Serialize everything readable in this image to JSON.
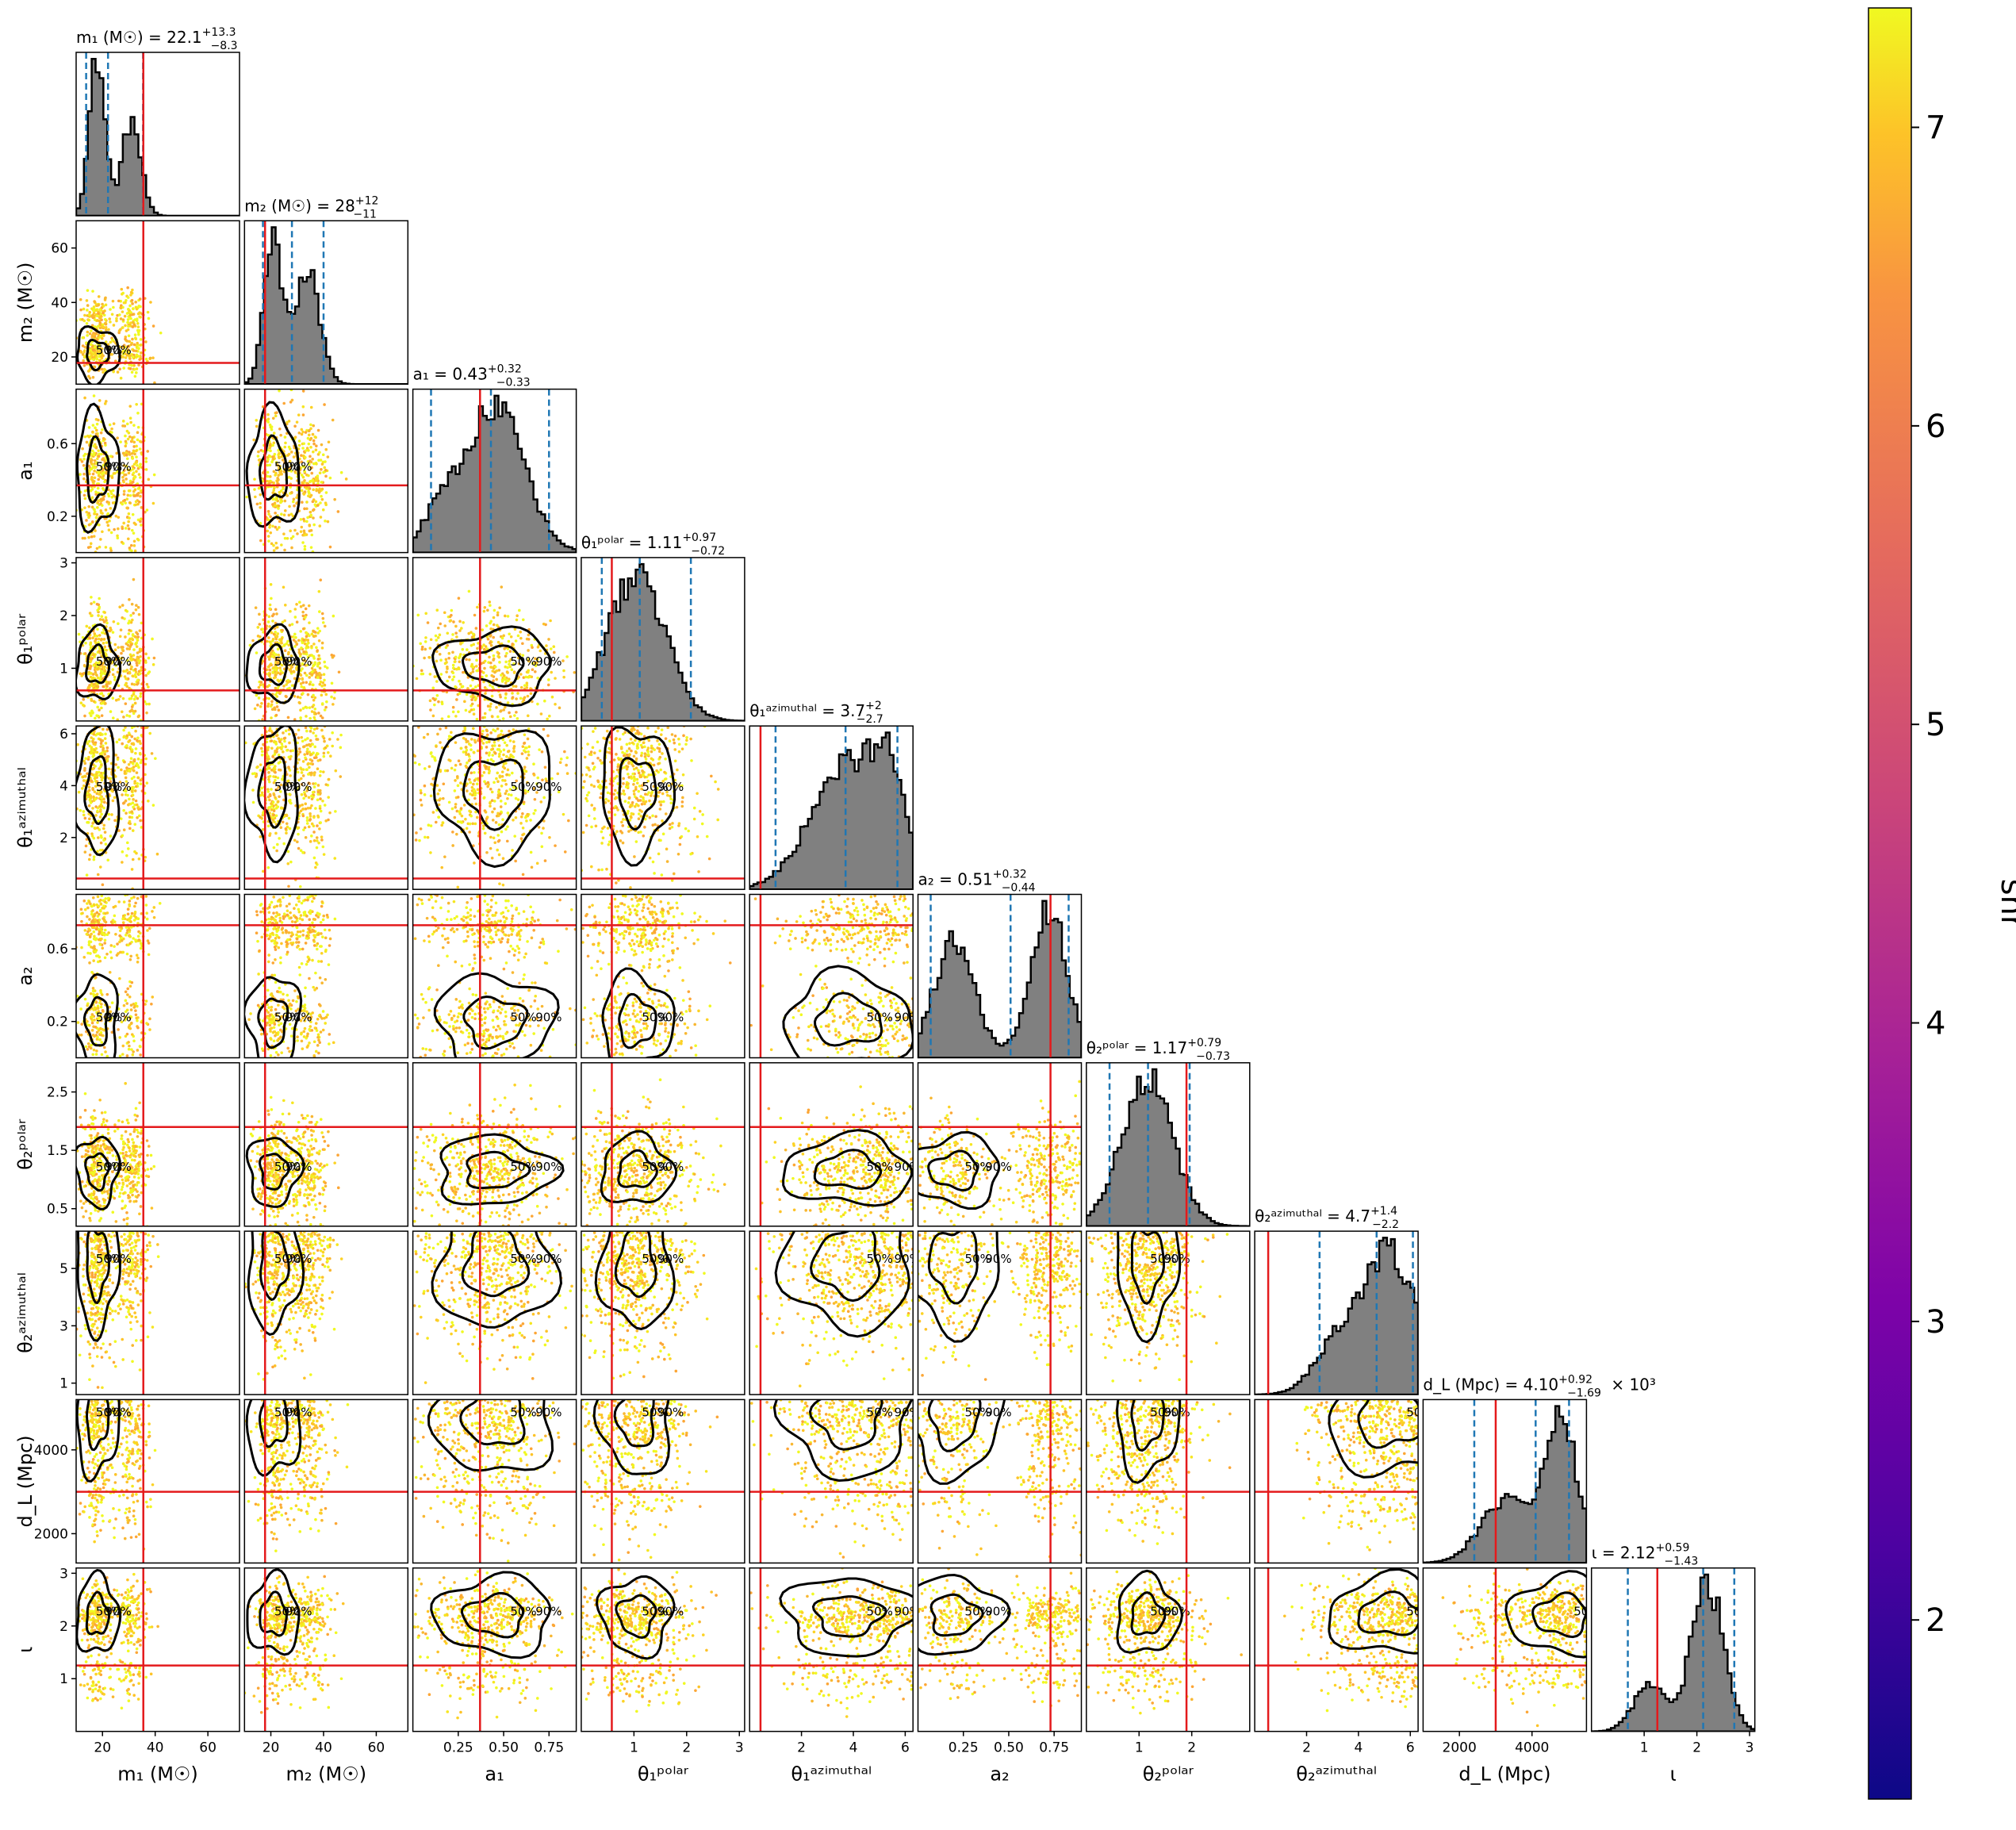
{
  "chart_data": {
    "type": "corner",
    "colorbar": {
      "label": "snr",
      "ticks": [
        2,
        3,
        4,
        5,
        6,
        7
      ],
      "range": [
        1.4,
        7.4
      ],
      "colormap": "plasma"
    },
    "colors": {
      "hist_fill": "#808080",
      "hist_edge": "#000000",
      "quantile_line": "#1f77b4",
      "truth_line": "#e41a1c",
      "contour": "#000000"
    },
    "contour_levels": [
      "50%",
      "90%"
    ],
    "parameters": [
      {
        "key": "m1",
        "label": "m₁ (M☉)",
        "title": "m₁ (M☉) = 22.1",
        "title_sup": "+13.3",
        "title_sub": "−8.3",
        "range": [
          10,
          72
        ],
        "ticks": [
          20,
          40,
          60
        ],
        "tick_labels": [
          "20",
          "40",
          "60"
        ],
        "truth": 35.5,
        "quantiles": [
          13.8,
          22.1,
          35.4
        ],
        "peaks": [
          [
            18,
            1.0,
            3.0
          ],
          [
            31,
            0.6,
            3.5
          ]
        ]
      },
      {
        "key": "m2",
        "label": "m₂ (M☉)",
        "title": "m₂ (M☉) = 28",
        "title_sup": "+12",
        "title_sub": "−11",
        "range": [
          10,
          72
        ],
        "ticks": [
          20,
          40,
          60
        ],
        "tick_labels": [
          "20",
          "40",
          "60"
        ],
        "truth": 17.8,
        "quantiles": [
          17,
          28,
          40
        ],
        "peaks": [
          [
            21,
            1.0,
            3.5
          ],
          [
            34,
            0.8,
            4.5
          ]
        ]
      },
      {
        "key": "a1",
        "label": "a₁",
        "title": "a₁ = 0.43",
        "title_sup": "+0.32",
        "title_sub": "−0.33",
        "range": [
          0,
          0.9
        ],
        "ticks": [
          0.25,
          0.5,
          0.75
        ],
        "tick_labels": [
          "0.25",
          "0.50",
          "0.75"
        ],
        "truth": 0.37,
        "quantiles": [
          0.1,
          0.43,
          0.75
        ],
        "peaks": [
          [
            0.45,
            1.0,
            0.16
          ],
          [
            0.15,
            0.25,
            0.1
          ]
        ]
      },
      {
        "key": "t1p",
        "label": "θ₁ᵖᵒˡᵃʳ",
        "title": "θ₁ᵖᵒˡᵃʳ = 1.11",
        "title_sup": "+0.97",
        "title_sub": "−0.72",
        "range": [
          0,
          3.1
        ],
        "ticks": [
          1,
          2,
          3
        ],
        "tick_labels": [
          "1",
          "2",
          "3"
        ],
        "truth": 0.58,
        "quantiles": [
          0.39,
          1.11,
          2.08
        ],
        "peaks": [
          [
            1.05,
            1.0,
            0.55
          ]
        ]
      },
      {
        "key": "t1a",
        "label": "θ₁ᵃᶻⁱᵐᵘᵗʰᵃˡ",
        "title": "θ₁ᵃᶻⁱᵐᵘᵗʰᵃˡ = 3.7",
        "title_sup": "+2",
        "title_sub": "−2.7",
        "range": [
          0,
          6.3
        ],
        "ticks": [
          2,
          4,
          6
        ],
        "tick_labels": [
          "2",
          "4",
          "6"
        ],
        "truth": 0.42,
        "quantiles": [
          1.0,
          3.7,
          5.7
        ],
        "peaks": [
          [
            3.8,
            1.0,
            1.4
          ],
          [
            5.4,
            0.6,
            0.6
          ]
        ]
      },
      {
        "key": "a2",
        "label": "a₂",
        "title": "a₂ = 0.51",
        "title_sup": "+0.32",
        "title_sub": "−0.44",
        "range": [
          0,
          0.9
        ],
        "ticks": [
          0.25,
          0.5,
          0.75
        ],
        "tick_labels": [
          "0.25",
          "0.50",
          "0.75"
        ],
        "truth": 0.73,
        "quantiles": [
          0.07,
          0.51,
          0.83
        ],
        "peaks": [
          [
            0.2,
            0.75,
            0.11
          ],
          [
            0.72,
            0.95,
            0.1
          ]
        ]
      },
      {
        "key": "t2p",
        "label": "θ₂ᵖᵒˡᵃʳ",
        "title": "θ₂ᵖᵒˡᵃʳ = 1.17",
        "title_sup": "+0.79",
        "title_sub": "−0.73",
        "range": [
          0,
          3.1
        ],
        "ticks": [
          1,
          2
        ],
        "tick_labels": [
          "1",
          "2"
        ],
        "truth": 1.9,
        "quantiles": [
          0.44,
          1.17,
          1.96
        ],
        "peaks": [
          [
            1.15,
            1.0,
            0.48
          ]
        ]
      },
      {
        "key": "t2a",
        "label": "θ₂ᵃᶻⁱᵐᵘᵗʰᵃˡ",
        "title": "θ₂ᵃᶻⁱᵐᵘᵗʰᵃˡ = 4.7",
        "title_sup": "+1.4",
        "title_sub": "−2.2",
        "range": [
          0,
          6.3
        ],
        "ticks": [
          2,
          4,
          6
        ],
        "tick_labels": [
          "2",
          "4",
          "6"
        ],
        "truth": 0.52,
        "quantiles": [
          2.5,
          4.7,
          6.1
        ],
        "peaks": [
          [
            5.2,
            1.0,
            1.0
          ],
          [
            3.2,
            0.35,
            0.9
          ]
        ]
      },
      {
        "key": "dL",
        "label": "d_L (Mpc)",
        "title": "d_L (Mpc) = 4.10",
        "title_sup": "+0.92",
        "title_sub": "−1.69",
        "title_suffix": "× 10³",
        "range": [
          1000,
          5500
        ],
        "ticks": [
          2000,
          4000
        ],
        "tick_labels": [
          "2000",
          "4000"
        ],
        "truth": 3000,
        "quantiles": [
          2410,
          4100,
          5020
        ],
        "peaks": [
          [
            4800,
            1.0,
            450
          ],
          [
            3300,
            0.45,
            700
          ]
        ]
      },
      {
        "key": "iota",
        "label": "ι",
        "title": "ι = 2.12",
        "title_sup": "+0.59",
        "title_sub": "−1.43",
        "range": [
          0,
          3.1
        ],
        "ticks": [
          1,
          2,
          3
        ],
        "tick_labels": [
          "1",
          "2",
          "3"
        ],
        "truth": 1.25,
        "quantiles": [
          0.69,
          2.12,
          2.71
        ],
        "peaks": [
          [
            2.2,
            1.0,
            0.3
          ],
          [
            1.1,
            0.3,
            0.3
          ]
        ]
      }
    ],
    "ytick_overrides": {
      "m2": {
        "ticks": [
          20,
          40,
          60
        ],
        "range": [
          10,
          70
        ]
      },
      "a1": {
        "ticks": [
          0.2,
          0.6
        ],
        "tick_labels": [
          "0.2",
          "0.6"
        ]
      },
      "a2": {
        "ticks": [
          0.2,
          0.6
        ],
        "tick_labels": [
          "0.2",
          "0.6"
        ]
      },
      "t2p": {
        "ticks": [
          0.5,
          1.5,
          2.5
        ],
        "tick_labels": [
          "0.5",
          "1.5",
          "2.5"
        ],
        "range": [
          0.2,
          3.0
        ]
      },
      "t2a": {
        "ticks": [
          1,
          3,
          5
        ],
        "tick_labels": [
          "1",
          "3",
          "5"
        ],
        "range": [
          0.6,
          6.3
        ]
      },
      "dL": {
        "ticks": [
          2000,
          4000
        ],
        "range": [
          1300,
          5200
        ]
      }
    }
  }
}
